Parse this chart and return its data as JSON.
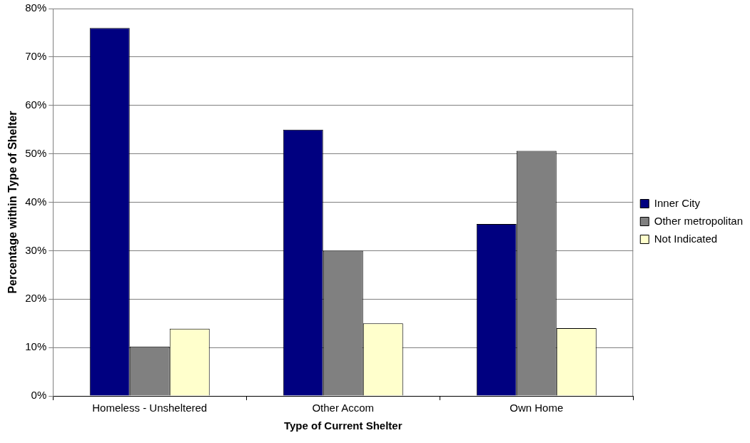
{
  "chart_data": {
    "type": "bar",
    "xlabel": "Type of Current Shelter",
    "ylabel": "Percentage within Type of Shelter",
    "categories": [
      "Homeless - Unsheltered",
      "Other Accom",
      "Own Home"
    ],
    "series": [
      {
        "name": "Inner City",
        "color": "#000080",
        "values": [
          76,
          55,
          35.5
        ]
      },
      {
        "name": "Other metropolitan",
        "color": "#808080",
        "values": [
          10.2,
          30,
          50.6
        ]
      },
      {
        "name": "Not Indicated",
        "color": "#ffffcc",
        "values": [
          13.9,
          15,
          14
        ]
      }
    ],
    "ylim": [
      0,
      80
    ],
    "yticks": [
      {
        "value": 0,
        "label": "0%"
      },
      {
        "value": 10,
        "label": "10%"
      },
      {
        "value": 20,
        "label": "20%"
      },
      {
        "value": 30,
        "label": "30%"
      },
      {
        "value": 40,
        "label": "40%"
      },
      {
        "value": 50,
        "label": "50%"
      },
      {
        "value": 60,
        "label": "60%"
      },
      {
        "value": 70,
        "label": "70%"
      },
      {
        "value": 80,
        "label": "80%"
      }
    ],
    "grid": "y",
    "legend": "right"
  }
}
